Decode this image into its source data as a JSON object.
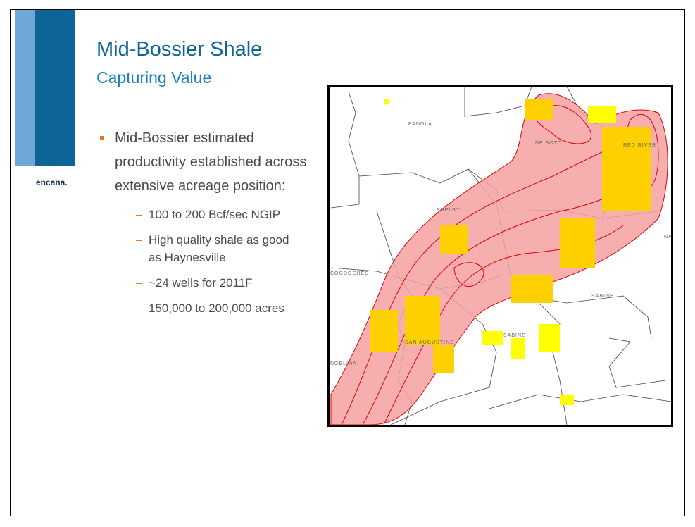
{
  "header": {
    "title": "Mid-Bossier Shale",
    "subtitle": "Capturing Value"
  },
  "logo": "encana.",
  "bullets": [
    {
      "text": "Mid-Bossier estimated productivity established across extensive acreage position:",
      "items": [
        "100 to 200 Bcf/sec NGIP",
        "High quality shale as good as Haynesville",
        "~24 wells for 2011F",
        "150,000 to 200,000 acres"
      ]
    }
  ],
  "map": {
    "labels": [
      "PANOLA",
      "DE SOTO",
      "RED RIVER",
      "SHELBY",
      "COGDOCHES",
      "SABINE",
      "SABINE",
      "SAN AUGUSTINE",
      "NGELINA",
      "NATC"
    ]
  }
}
